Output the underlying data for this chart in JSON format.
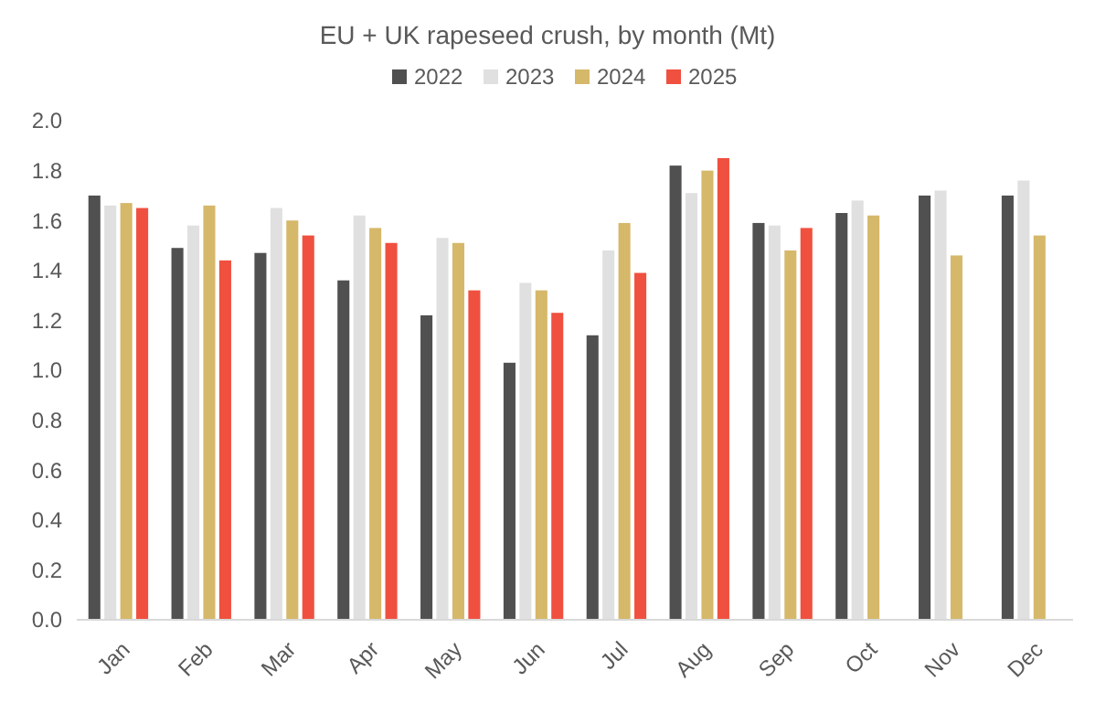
{
  "chart_data": {
    "type": "bar",
    "title": "EU + UK rapeseed crush, by month (Mt)",
    "categories": [
      "Jan",
      "Feb",
      "Mar",
      "Apr",
      "May",
      "Jun",
      "Jul",
      "Aug",
      "Sep",
      "Oct",
      "Nov",
      "Dec"
    ],
    "series": [
      {
        "name": "2022",
        "color": "#505050",
        "values": [
          1.7,
          1.49,
          1.47,
          1.36,
          1.22,
          1.03,
          1.14,
          1.82,
          1.59,
          1.63,
          1.7,
          1.7
        ]
      },
      {
        "name": "2023",
        "color": "#e0e0e0",
        "values": [
          1.66,
          1.58,
          1.65,
          1.62,
          1.53,
          1.35,
          1.48,
          1.71,
          1.58,
          1.68,
          1.72,
          1.76
        ]
      },
      {
        "name": "2024",
        "color": "#d6b86a",
        "values": [
          1.67,
          1.66,
          1.6,
          1.57,
          1.51,
          1.32,
          1.59,
          1.8,
          1.48,
          1.62,
          1.46,
          1.54
        ]
      },
      {
        "name": "2025",
        "color": "#f0503f",
        "values": [
          1.65,
          1.44,
          1.54,
          1.51,
          1.32,
          1.23,
          1.39,
          1.85,
          1.57,
          null,
          null,
          null
        ]
      }
    ],
    "ylim": [
      0,
      2
    ],
    "yticks": [
      {
        "value": 0,
        "label": "0.0"
      },
      {
        "value": 0.2,
        "label": "0.2"
      },
      {
        "value": 0.4,
        "label": "0.4"
      },
      {
        "value": 0.6,
        "label": "0.6"
      },
      {
        "value": 0.8,
        "label": "0.8"
      },
      {
        "value": 1,
        "label": "1.0"
      },
      {
        "value": 1.2,
        "label": "1.2"
      },
      {
        "value": 1.4,
        "label": "1.4"
      },
      {
        "value": 1.6,
        "label": "1.6"
      },
      {
        "value": 1.8,
        "label": "1.8"
      },
      {
        "value": 2,
        "label": "2.0"
      }
    ],
    "grid": false,
    "legend": "top"
  }
}
